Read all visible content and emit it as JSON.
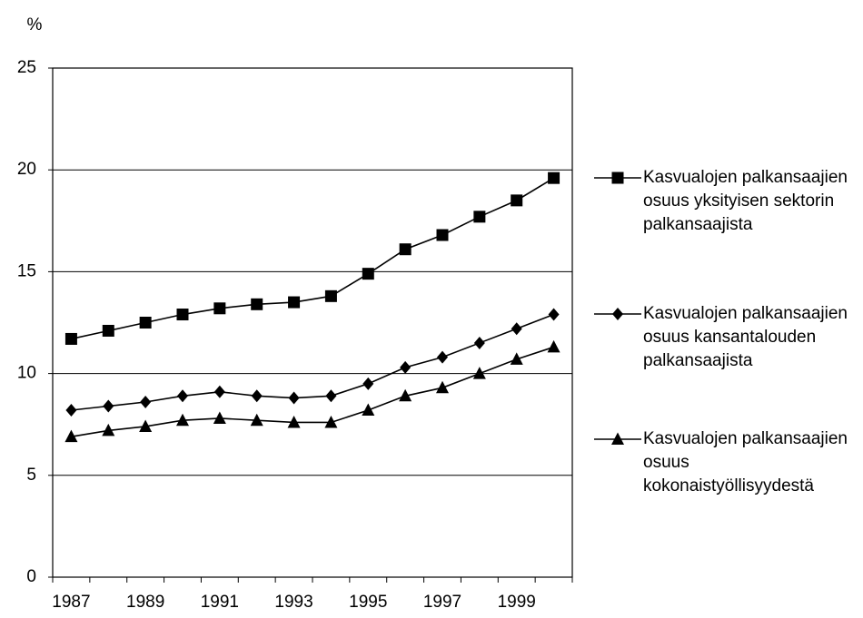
{
  "chart_data": {
    "type": "line",
    "ylabel": "%",
    "categories": [
      "1987",
      null,
      "1989",
      null,
      "1991",
      null,
      "1993",
      null,
      "1995",
      null,
      "1997",
      null,
      "1999",
      null
    ],
    "series": [
      {
        "name": "Kasvualojen palkansaajien osuus yksityisen sektorin palkansaajista",
        "color": "#000000",
        "marker": "square",
        "values": [
          11.7,
          12.1,
          12.5,
          12.9,
          13.2,
          13.4,
          13.5,
          13.8,
          14.9,
          16.1,
          16.8,
          17.7,
          18.5,
          19.6
        ]
      },
      {
        "name": "Kasvualojen palkansaajien osuus kansantalouden palkansaajista",
        "color": "#000000",
        "marker": "diamond",
        "values": [
          8.2,
          8.4,
          8.6,
          8.9,
          9.1,
          8.9,
          8.8,
          8.9,
          9.5,
          10.3,
          10.8,
          11.5,
          12.2,
          12.9
        ]
      },
      {
        "name": "Kasvualojen palkansaajien osuus kokonaistyöllisyydestä",
        "color": "#000000",
        "marker": "triangle",
        "values": [
          6.9,
          7.2,
          7.4,
          7.7,
          7.8,
          7.7,
          7.6,
          7.6,
          8.2,
          8.9,
          9.3,
          10.0,
          10.7,
          11.3
        ]
      }
    ],
    "ylim": [
      0,
      25
    ],
    "yticks": [
      0,
      5,
      10,
      15,
      20,
      25
    ],
    "grid": true,
    "legend": "right"
  }
}
